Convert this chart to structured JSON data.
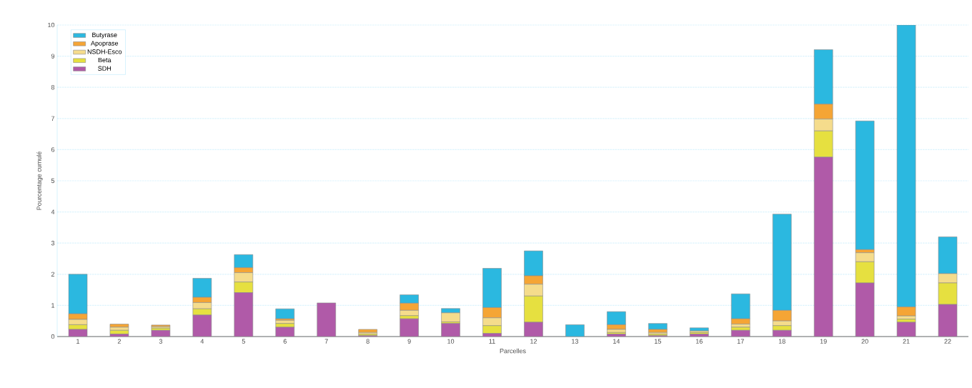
{
  "chart_data": {
    "type": "bar",
    "stacked": true,
    "xlabel": "Parcelles",
    "ylabel": "Pourcentage cumulé",
    "categories": [
      "1",
      "2",
      "3",
      "4",
      "5",
      "6",
      "7",
      "8",
      "9",
      "10",
      "11",
      "12",
      "13",
      "14",
      "15",
      "16",
      "17",
      "18",
      "19",
      "20",
      "21",
      "22"
    ],
    "series": [
      {
        "name": "SDH",
        "color": "#b05aa8",
        "values": [
          0.23,
          0.08,
          0.2,
          0.69,
          1.41,
          0.3,
          1.08,
          0.03,
          0.57,
          0.42,
          0.1,
          0.46,
          0,
          0.08,
          0.03,
          0.08,
          0.2,
          0.2,
          5.76,
          1.72,
          0.46,
          1.03
        ]
      },
      {
        "name": "Beta",
        "color": "#e6e040",
        "values": [
          0.15,
          0.12,
          0.07,
          0.2,
          0.34,
          0.12,
          0,
          0.05,
          0.1,
          0.05,
          0.25,
          0.84,
          0,
          0.05,
          0.05,
          0.05,
          0.1,
          0.15,
          0.84,
          0.68,
          0.1,
          0.69
        ]
      },
      {
        "name": "NSDH-Esco",
        "color": "#f5dc8c",
        "values": [
          0.17,
          0.1,
          0.05,
          0.2,
          0.3,
          0.1,
          0,
          0.05,
          0.17,
          0.29,
          0.25,
          0.38,
          0,
          0.1,
          0.05,
          0.05,
          0.1,
          0.15,
          0.38,
          0.29,
          0.1,
          0.3
        ]
      },
      {
        "name": "Apoprase",
        "color": "#f5a535",
        "values": [
          0.18,
          0.1,
          0.05,
          0.17,
          0.16,
          0.05,
          0,
          0.1,
          0.23,
          0,
          0.33,
          0.27,
          0,
          0.15,
          0.1,
          0,
          0.17,
          0.34,
          0.48,
          0.1,
          0.29,
          0
        ]
      },
      {
        "name": "Butyrase",
        "color": "#2bb8e0",
        "values": [
          1.27,
          0,
          0,
          0.61,
          0.42,
          0.32,
          0,
          0,
          0.27,
          0.14,
          1.26,
          0.8,
          0.38,
          0.42,
          0.19,
          0.1,
          0.8,
          3.09,
          1.75,
          4.13,
          9.05,
          1.18
        ]
      }
    ],
    "ylim": [
      0,
      10
    ],
    "yticks": [
      0,
      1,
      2,
      3,
      4,
      5,
      6,
      7,
      8,
      9,
      10
    ],
    "grid": "y",
    "legend": "top left"
  }
}
